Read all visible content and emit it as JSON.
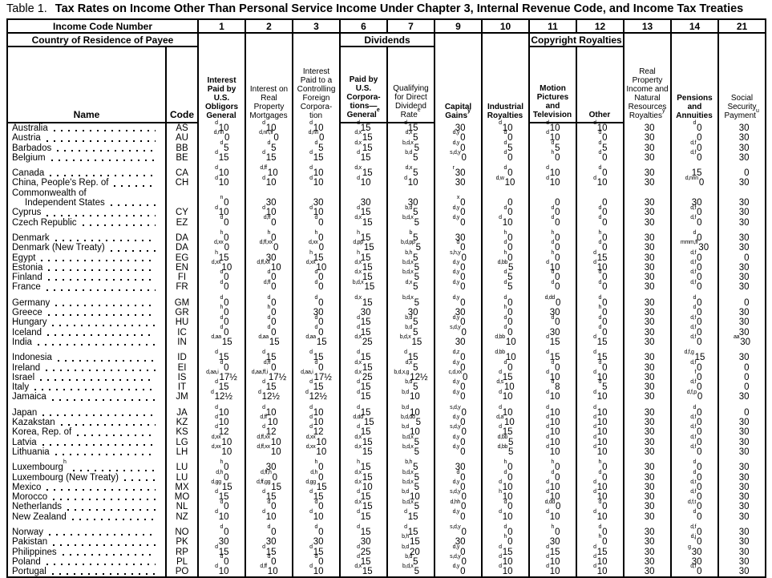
{
  "title": {
    "prefix": "Table 1.",
    "text": "Tax Rates on Income Other Than Personal Service Income Under Chapter 3, Internal Revenue Code, and Income Tax Treaties"
  },
  "table": {
    "income_code_label": "Income Code Number",
    "country_label": "Country of Residence of Payee",
    "name_label": "Name",
    "code_label": "Code",
    "dividends_label": "Dividends",
    "copyright_label": "Copyright Royalties",
    "cols": [
      {
        "num": "1",
        "label": "Interest Paid by U.S. Obligors General",
        "sup": ""
      },
      {
        "num": "2",
        "label": "Interest on Real Property Mortgages",
        "sup": ""
      },
      {
        "num": "3",
        "label": "Interest Paid to a Controlling Foreign Corpora-tion",
        "sup": ""
      },
      {
        "num": "6",
        "label": "Paid by U.S. Corpora-tions—General",
        "sup": "e"
      },
      {
        "num": "7",
        "label": "Qualifying for Direct Dividend Rate",
        "sup": "e"
      },
      {
        "num": "9",
        "label": "Capital Gains",
        "sup": "y"
      },
      {
        "num": "10",
        "label": "Industrial Royalties",
        "sup": ""
      },
      {
        "num": "11",
        "label": "Motion Pictures and Television",
        "sup": ""
      },
      {
        "num": "12",
        "label": "Other",
        "sup": ""
      },
      {
        "num": "13",
        "label": "Real Property Income and Natural Resources Royalties",
        "sup": "y"
      },
      {
        "num": "14",
        "label": "Pensions and Annuities",
        "sup": ""
      },
      {
        "num": "21",
        "label": "Social Security Payment",
        "sup": "u"
      }
    ],
    "groups": [
      [
        {
          "name": "Australia",
          "code": "AS",
          "cells": [
            "d|10",
            "d|10",
            "d|10",
            "d|15",
            "d|15",
            "30",
            "d|10",
            "d|10",
            "d|10",
            "30",
            "d|0",
            "30"
          ]
        },
        {
          "name": "Austria",
          "code": "AU",
          "cells": [
            "d,nn|0",
            "d,nn,ff|0",
            "d,nn|0",
            "d,x|15",
            "d,x|5",
            "d,y|0",
            "d|0",
            "d|10",
            "d|0",
            "30",
            "0",
            "30"
          ]
        },
        {
          "name": "Barbados",
          "code": "BB",
          "cells": [
            "d|5",
            "d|5",
            "d|5",
            "d,x|15",
            "b,d,x|5",
            "d,y|0",
            "d|5",
            "d|5",
            "d|5",
            "30",
            "d,f|0",
            "30"
          ]
        },
        {
          "name": "Belgium",
          "code": "BE",
          "cells": [
            "d|15",
            "d|15",
            "d|15",
            "d|15",
            "b,d|5",
            "s,d,y|0",
            "d|0",
            "h|0",
            "d|0",
            "30",
            "d,f|0",
            "30"
          ]
        }
      ],
      [
        {
          "name": "Canada",
          "code": "CA",
          "cells": [
            "d|10",
            "d,ff|10",
            "d|10",
            "d,x|15",
            "d,x|5",
            "r|30",
            "d|0",
            "d|10",
            "d|0",
            "30",
            "15",
            "0"
          ]
        },
        {
          "name": "China, People's Rep. of",
          "code": "CH",
          "cells": [
            "d|10",
            "d|10",
            "d|10",
            "d|10",
            "d|10",
            "30",
            "d,w|10",
            "d|10",
            "d|10",
            "30",
            "d,nnn|0",
            "30"
          ]
        },
        {
          "name": "Commonwealth of",
          "name2": "Independent States",
          "code": "",
          "cells": [
            "n|0",
            "30",
            "30",
            "30",
            "30",
            "x|0",
            "0",
            "0",
            "0",
            "30",
            "30",
            "30"
          ]
        },
        {
          "name": "Cyprus",
          "code": "CY",
          "cells": [
            "d|10",
            "d|10",
            "d|10",
            "d|15",
            "b,d|5",
            "d,y|0",
            "d|0",
            "d|0",
            "d|0",
            "30",
            "d,f|0",
            "30"
          ]
        },
        {
          "name": "Czech Republic",
          "code": "EZ",
          "cells": [
            "d|0",
            "d,ff|0",
            "d|0",
            "d,x|15",
            "b,d,x|5",
            "d,y|0",
            "d|10",
            "d|0",
            "d|0",
            "30",
            "d,f|0",
            "30"
          ]
        }
      ],
      [
        {
          "name": "Denmark",
          "code": "DA",
          "cells": [
            "h|0",
            "h|0",
            "h|0",
            "h|15",
            "b|5",
            "30",
            "h|0",
            "h|0",
            "h|0",
            "30",
            "d|0",
            "30"
          ]
        },
        {
          "name": "Denmark (New Treaty)",
          "code": "DA",
          "cells": [
            "d,xx|0",
            "d,ff,xx|0",
            "d,xx|0",
            "d,pp|15",
            "b,d,pp|5",
            "d|0",
            "d|0",
            "d|0",
            "d|0",
            "30",
            "mmm,ff|30",
            "30"
          ]
        },
        {
          "name": "Egypt",
          "code": "EG",
          "cells": [
            "h|15",
            "30",
            "h|15",
            "h|15",
            "b,h|5",
            "s,h,y|0",
            "h|0",
            "h|0",
            "d|15",
            "30",
            "d,f|0",
            "0"
          ]
        },
        {
          "name": "Estonia",
          "code": "EN",
          "cells": [
            "d,xx|10",
            "d,ff,xx|10",
            "d,xx|10",
            "d,x|15",
            "b,d,x|5",
            "d,y|0",
            "d,bb|5",
            "d|10",
            "d|10",
            "30",
            "d,f|0",
            "30"
          ]
        },
        {
          "name": "Finland",
          "code": "FI",
          "cells": [
            "d|0",
            "d|0",
            "d|0",
            "d,x|15",
            "b,d,x|5",
            "d,y|0",
            "d|5",
            "d|0",
            "d|0",
            "30",
            "d,f|0",
            "30"
          ]
        },
        {
          "name": "France",
          "code": "FR",
          "cells": [
            "d|0",
            "d,ff|0",
            "d|0",
            "b,d,x|15",
            "d,x|5",
            "d,y|0",
            "d|5",
            "d|0",
            "d|0",
            "30",
            "d,f|0",
            "30"
          ]
        }
      ],
      [
        {
          "name": "Germany",
          "code": "GM",
          "cells": [
            "d|0",
            "d|0",
            "d|0",
            "d,x|15",
            "b,d,x|5",
            "d,y|0",
            "d|0",
            "d,dd|0",
            "d|0",
            "30",
            "d|0",
            "0"
          ]
        },
        {
          "name": "Greece",
          "code": "GR",
          "cells": [
            "h|0",
            "h|0",
            "30",
            "30",
            "30",
            "30",
            "h|0",
            "30",
            "h|0",
            "30",
            "d|0",
            "30"
          ]
        },
        {
          "name": "Hungary",
          "code": "HU",
          "cells": [
            "d|0",
            "d|0",
            "d|0",
            "d|15",
            "b,d|5",
            "d,y|0",
            "d|0",
            "d|0",
            "d|0",
            "30",
            "d,f|0",
            "30"
          ]
        },
        {
          "name": "Iceland",
          "code": "IC",
          "cells": [
            "d|0",
            "d|0",
            "d|0",
            "d|15",
            "b,d|5",
            "s,d,y|0",
            "d|0",
            "30",
            "d|0",
            "30",
            "d,f|0",
            "30"
          ]
        },
        {
          "name": "India",
          "code": "IN",
          "cells": [
            "d,aa|15",
            "d,aa|15",
            "d,aa|15",
            "d,x|25",
            "b,d,x|15",
            "30",
            "d,bb|10",
            "d|15",
            "d|15",
            "30",
            "d,f|0",
            "aa|30"
          ]
        }
      ],
      [
        {
          "name": "Indonesia",
          "code": "ID",
          "cells": [
            "d|15",
            "d|15",
            "d|15",
            "d|15",
            "d|15",
            "d,z|0",
            "d,bb|10",
            "d|15",
            "d|15",
            "30",
            "d,f,g|15",
            "30"
          ]
        },
        {
          "name": "Ireland",
          "code": "EI",
          "cells": [
            "d|0",
            "d,ff|0",
            "d|0",
            "d,x|15",
            "d,x|5",
            "d,y|0",
            "d|0",
            "d|0",
            "d|0",
            "30",
            "d,f|0",
            "0"
          ]
        },
        {
          "name": "Israel",
          "code": "IS",
          "cells": [
            "d,aa,i|17½",
            "d,aa,ff,i|17½",
            "d,aa,i|17½",
            "d,x|25",
            "b,d,x,g|12½",
            "c,d,xx|0",
            "d|15",
            "d|10",
            "d|10",
            "30",
            "f|0",
            "0"
          ]
        },
        {
          "name": "Italy",
          "code": "IT",
          "cells": [
            "d|15",
            "d|15",
            "d|15",
            "d|15",
            "b,d|5",
            "d,y|0",
            "d,s|10",
            "d|8",
            "d|5",
            "30",
            "d,f|0",
            "0"
          ]
        },
        {
          "name": "Jamaica",
          "code": "JM",
          "cells": [
            "d|12½",
            "d|12½",
            "d|12½",
            "d|15",
            "b,d|10",
            "d,y|0",
            "d|10",
            "d|10",
            "d|10",
            "30",
            "d,f,p|0",
            "30"
          ]
        }
      ],
      [
        {
          "name": "Japan",
          "code": "JA",
          "cells": [
            "d|10",
            "d|10",
            "d|10",
            "d|15",
            "b,d|10",
            "s,d,y|0",
            "d|10",
            "d|10",
            "d|10",
            "30",
            "d|0",
            "0"
          ]
        },
        {
          "name": "Kazakstan",
          "code": "KZ",
          "cells": [
            "d|10",
            "d,ff|10",
            "d|10",
            "d,dd|15",
            "b,d,dd|5",
            "d,y|0",
            "d,a|10",
            "d|10",
            "d|10",
            "30",
            "d,f|0",
            "30"
          ]
        },
        {
          "name": "Korea, Rep. of",
          "code": "KS",
          "cells": [
            "d|12",
            "d|12",
            "d|12",
            "d|15",
            "b,d|10",
            "s,d,y|0",
            "d|15",
            "d|10",
            "d|10",
            "30",
            "d,f|0",
            "30"
          ]
        },
        {
          "name": "Latvia",
          "code": "LG",
          "cells": [
            "d,xx|10",
            "d,ff,xx|10",
            "d,xx|10",
            "d,x|15",
            "b,d,x|5",
            "d,y|0",
            "d,bb|5",
            "d|10",
            "d|10",
            "30",
            "d,f|0",
            "30"
          ]
        },
        {
          "name": "Lithuania",
          "code": "LH",
          "cells": [
            "d,xx|10",
            "d,ff,xx|10",
            "d,xx|10",
            "d,x|15",
            "b,d,x|5",
            "d,y|0",
            "d,bb|5",
            "d|10",
            "d|10",
            "30",
            "d,f|0",
            "30"
          ]
        }
      ],
      [
        {
          "name": "Luxembourg",
          "nameSup": "h",
          "code": "LU",
          "cells": [
            "h|0",
            "30",
            "h|0",
            "h|15",
            "b,h|5",
            "30",
            "h|0",
            "h|0",
            "h|0",
            "30",
            "d|0",
            "30"
          ]
        },
        {
          "name": "Luxembourg (New Treaty)",
          "code": "LU",
          "cells": [
            "d,h|0",
            "d,ff,h|0",
            "d,h|0",
            "d,x|15",
            "b,d,x|5",
            "d|0",
            "d|0",
            "d|0",
            "d|0",
            "30",
            "d|0",
            "30"
          ]
        },
        {
          "name": "Mexico",
          "code": "MX",
          "cells": [
            "d,gg|15",
            "d,ff,gg|15",
            "d,gg|15",
            "d,x|10",
            "b,d,x|5",
            "d,y|0",
            "d|10",
            "d|10",
            "d|10",
            "30",
            "d,t|0",
            "30"
          ]
        },
        {
          "name": "Morocco",
          "code": "MO",
          "cells": [
            "d|15",
            "d|15",
            "d|15",
            "d|15",
            "b,d|10",
            "s,d,y|0",
            "h|10",
            "d|10",
            "d|10",
            "30",
            "d,f|0",
            "30"
          ]
        },
        {
          "name": "Netherlands",
          "code": "NL",
          "cells": [
            "d|0",
            "d|0",
            "d|0",
            "d,x|15",
            "b,d,x|5",
            "d,hh|0",
            "d|0",
            "d,dd|0",
            "d|0",
            "30",
            "d,f,t|0",
            "30"
          ]
        },
        {
          "name": "New Zealand",
          "code": "NZ",
          "cells": [
            "d|10",
            "d|10",
            "d|10",
            "d|15",
            "d|15",
            "d,y|0",
            "d|10",
            "d|10",
            "d|10",
            "30",
            "d|0",
            "30"
          ]
        }
      ],
      [
        {
          "name": "Norway",
          "code": "NO",
          "cells": [
            "d|0",
            "d|0",
            "d|0",
            "d|15",
            "d|15",
            "s,d,y|0",
            "d|0",
            "h|0",
            "d|0",
            "30",
            "d,f|0",
            "30"
          ]
        },
        {
          "name": "Pakistan",
          "code": "PK",
          "cells": [
            "30",
            "30",
            "30",
            "30",
            "b,h|15",
            "30",
            "h|0",
            "30",
            "h|0",
            "30",
            "d,j|0",
            "30"
          ]
        },
        {
          "name": "Philippines",
          "code": "RP",
          "cells": [
            "d|15",
            "d|15",
            "d|15",
            "d|25",
            "b,d|20",
            "d,y|0",
            "d|15",
            "d|15",
            "d|15",
            "30",
            "g|30",
            "30"
          ]
        },
        {
          "name": "Poland",
          "code": "PL",
          "cells": [
            "d|0",
            "d|0",
            "d|0",
            "d|15",
            "b,d|5",
            "s,d,y|0",
            "d|10",
            "d|10",
            "d|10",
            "30",
            "30",
            "30"
          ]
        },
        {
          "name": "Portugal",
          "code": "PO",
          "cells": [
            "d|10",
            "d,ff|10",
            "d|10",
            "d,x|15",
            "b,d,x|5",
            "d,y|0",
            "d|10",
            "d|10",
            "d|10",
            "30",
            "d,f|0",
            "30"
          ]
        }
      ]
    ]
  }
}
